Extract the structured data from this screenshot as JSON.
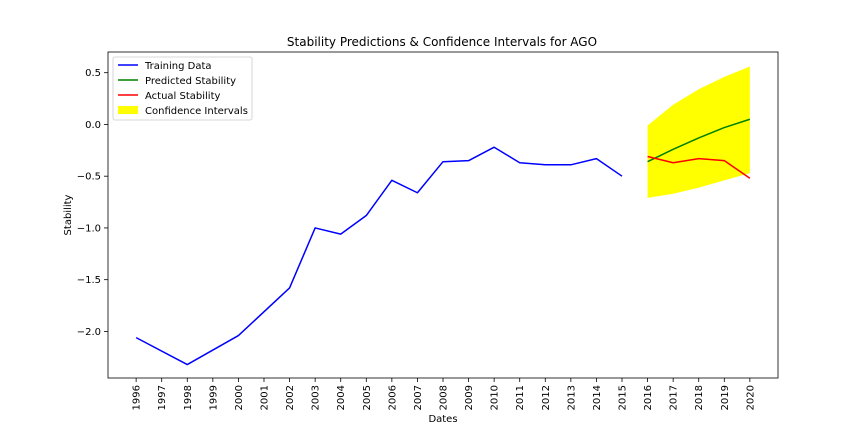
{
  "chart_data": {
    "type": "line",
    "title": "Stability Predictions & Confidence Intervals for AGO",
    "xlabel": "Dates",
    "ylabel": "Stability",
    "xlim": [
      1994.9,
      2021.1
    ],
    "ylim": [
      -2.45,
      0.7
    ],
    "x_ticks": [
      "1996",
      "1997",
      "1998",
      "1999",
      "2000",
      "2001",
      "2002",
      "2003",
      "2004",
      "2005",
      "2006",
      "2007",
      "2008",
      "2009",
      "2010",
      "2011",
      "2012",
      "2013",
      "2014",
      "2015",
      "2016",
      "2017",
      "2018",
      "2019",
      "2020"
    ],
    "y_ticks": [
      0.5,
      0.0,
      -0.5,
      -1.0,
      -1.5,
      -2.0
    ],
    "y_tick_labels": [
      "0.5",
      "0.0",
      "−0.5",
      "−1.0",
      "−1.5",
      "−2.0"
    ],
    "legend_position": "upper-left",
    "series": [
      {
        "name": "Training Data",
        "color": "#0000ff",
        "x": [
          1996,
          1998,
          2000,
          2002,
          2003,
          2004,
          2005,
          2006,
          2007,
          2008,
          2009,
          2010,
          2011,
          2012,
          2013,
          2014,
          2015
        ],
        "y": [
          -2.06,
          -2.32,
          -2.04,
          -1.58,
          -1.0,
          -1.06,
          -0.88,
          -0.54,
          -0.66,
          -0.36,
          -0.35,
          -0.22,
          -0.37,
          -0.39,
          -0.39,
          -0.33,
          -0.5
        ]
      },
      {
        "name": "Predicted Stability",
        "color": "#008000",
        "x": [
          2016,
          2017,
          2018,
          2019,
          2020
        ],
        "y": [
          -0.36,
          -0.24,
          -0.13,
          -0.03,
          0.05
        ]
      },
      {
        "name": "Actual Stability",
        "color": "#ff0000",
        "x": [
          2016,
          2017,
          2018,
          2019,
          2020
        ],
        "y": [
          -0.31,
          -0.37,
          -0.33,
          -0.35,
          -0.52
        ]
      }
    ],
    "confidence_interval": {
      "name": "Confidence Intervals",
      "color": "#ffff00",
      "x": [
        2016,
        2017,
        2018,
        2019,
        2020
      ],
      "lower": [
        -0.71,
        -0.67,
        -0.61,
        -0.54,
        -0.47
      ],
      "upper": [
        -0.01,
        0.19,
        0.34,
        0.46,
        0.56
      ]
    }
  }
}
